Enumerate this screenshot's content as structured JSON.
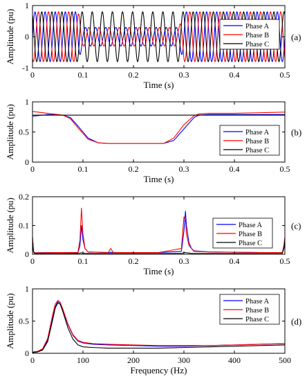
{
  "chart_data": [
    {
      "type": "line",
      "panel_label": "(a)",
      "xlabel": "Time (s)",
      "ylabel": "Amplitude (pu)",
      "xlim": [
        0,
        0.5
      ],
      "ylim": [
        -1,
        1
      ],
      "xticks": [
        0,
        0.1,
        0.2,
        0.3,
        0.4,
        0.5
      ],
      "xtick_labels": [
        "0",
        "0.1",
        "0.2",
        "0.3",
        "0.4",
        "0.5"
      ],
      "yticks": [
        -1,
        0,
        1
      ],
      "ytick_labels": [
        "-1",
        "0",
        "1"
      ],
      "grid": false,
      "legend": "top-right",
      "x": [
        0,
        0.09,
        0.1,
        0.29,
        0.3,
        0.5
      ],
      "series": [
        {
          "name": "Phase A",
          "color": "#0000ff",
          "frequency_hz": 50,
          "amplitude": [
            0.8,
            0.8,
            0.3,
            0.3,
            0.8,
            0.8
          ]
        },
        {
          "name": "Phase B",
          "color": "#ff0000",
          "frequency_hz": 50,
          "amplitude": [
            0.8,
            0.8,
            0.3,
            0.3,
            0.8,
            0.8
          ]
        },
        {
          "name": "Phase C",
          "color": "#000000",
          "frequency_hz": 50,
          "amplitude": [
            0.8,
            0.8,
            0.8,
            0.8,
            0.8,
            0.8
          ]
        }
      ]
    },
    {
      "type": "line",
      "panel_label": "(b)",
      "xlabel": "Time (s)",
      "ylabel": "Amplitude (pu)",
      "xlim": [
        0,
        0.5
      ],
      "ylim": [
        0,
        1
      ],
      "xticks": [
        0,
        0.1,
        0.2,
        0.3,
        0.4,
        0.5
      ],
      "xtick_labels": [
        "0",
        "0.1",
        "0.2",
        "0.3",
        "0.4",
        "0.5"
      ],
      "yticks": [
        0,
        0.5,
        1
      ],
      "ytick_labels": [
        "0",
        "0.5",
        "1"
      ],
      "grid": false,
      "legend": "bottom-right",
      "x": [
        0,
        0.03,
        0.06,
        0.075,
        0.09,
        0.11,
        0.13,
        0.15,
        0.26,
        0.28,
        0.3,
        0.32,
        0.33,
        0.35,
        0.4,
        0.5
      ],
      "series": [
        {
          "name": "Phase A",
          "color": "#0000ff",
          "values": [
            0.76,
            0.79,
            0.78,
            0.74,
            0.6,
            0.4,
            0.32,
            0.31,
            0.31,
            0.36,
            0.55,
            0.74,
            0.78,
            0.79,
            0.79,
            0.79
          ]
        },
        {
          "name": "Phase B",
          "color": "#ff0000",
          "values": [
            0.84,
            0.81,
            0.78,
            0.72,
            0.57,
            0.38,
            0.32,
            0.31,
            0.31,
            0.4,
            0.62,
            0.77,
            0.8,
            0.81,
            0.81,
            0.83
          ]
        },
        {
          "name": "Phase C",
          "color": "#000000",
          "values": [
            0.78,
            0.78,
            0.78,
            0.78,
            0.78,
            0.78,
            0.78,
            0.78,
            0.78,
            0.78,
            0.78,
            0.78,
            0.78,
            0.78,
            0.78,
            0.78
          ]
        }
      ]
    },
    {
      "type": "line",
      "panel_label": "(c)",
      "xlabel": "Time (s)",
      "ylabel": "Amplitude (pu)",
      "xlim": [
        0,
        0.5
      ],
      "ylim": [
        0,
        0.2
      ],
      "xticks": [
        0,
        0.1,
        0.2,
        0.3,
        0.4,
        0.5
      ],
      "xtick_labels": [
        "0",
        "0.1",
        "0.2",
        "0.3",
        "0.4",
        "0.5"
      ],
      "yticks": [
        0,
        0.1,
        0.2
      ],
      "ytick_labels": [
        "0",
        "0.1",
        "0.2"
      ],
      "grid": false,
      "legend": "top-right",
      "x": [
        0,
        0.002,
        0.004,
        0.05,
        0.09,
        0.094,
        0.097,
        0.1,
        0.104,
        0.11,
        0.15,
        0.155,
        0.16,
        0.2,
        0.25,
        0.295,
        0.3,
        0.303,
        0.305,
        0.31,
        0.315,
        0.32,
        0.35,
        0.45,
        0.495,
        0.498,
        0.5
      ],
      "series": [
        {
          "name": "Phase A",
          "color": "#0000ff",
          "values": [
            0.06,
            0.01,
            0.005,
            0.006,
            0.005,
            0.03,
            0.1,
            0.05,
            0.02,
            0.008,
            0.006,
            0.007,
            0.006,
            0.006,
            0.006,
            0.01,
            0.08,
            0.15,
            0.1,
            0.04,
            0.02,
            0.012,
            0.008,
            0.006,
            0.006,
            0.02,
            0.05
          ]
        },
        {
          "name": "Phase B",
          "color": "#ff0000",
          "values": [
            0.06,
            0.01,
            0.005,
            0.006,
            0.006,
            0.05,
            0.16,
            0.07,
            0.02,
            0.008,
            0.006,
            0.02,
            0.006,
            0.006,
            0.006,
            0.02,
            0.13,
            0.12,
            0.07,
            0.03,
            0.02,
            0.01,
            0.008,
            0.006,
            0.006,
            0.03,
            0.06
          ]
        },
        {
          "name": "Phase C",
          "color": "#000000",
          "values": [
            0.05,
            0.008,
            0.003,
            0.003,
            0.003,
            0.004,
            0.005,
            0.004,
            0.003,
            0.003,
            0.003,
            0.003,
            0.003,
            0.003,
            0.003,
            0.003,
            0.005,
            0.006,
            0.005,
            0.004,
            0.003,
            0.003,
            0.003,
            0.003,
            0.003,
            0.02,
            0.05
          ]
        }
      ]
    },
    {
      "type": "line",
      "panel_label": "(d)",
      "xlabel": "Frequency (Hz)",
      "ylabel": "Amplitude (pu)",
      "xlim": [
        0,
        500
      ],
      "ylim": [
        0,
        1
      ],
      "xticks": [
        0,
        100,
        200,
        300,
        400,
        500
      ],
      "xtick_labels": [
        "0",
        "100",
        "200",
        "300",
        "400",
        "500"
      ],
      "yticks": [
        0,
        0.5,
        1
      ],
      "ytick_labels": [
        "0",
        "0.5",
        "1"
      ],
      "grid": false,
      "legend": "top-right",
      "x": [
        0,
        10,
        20,
        30,
        40,
        45,
        50,
        55,
        60,
        70,
        80,
        90,
        100,
        120,
        150,
        200,
        250,
        300,
        350,
        400,
        450,
        500
      ],
      "series": [
        {
          "name": "Phase A",
          "color": "#0000ff",
          "values": [
            0.02,
            0.03,
            0.06,
            0.2,
            0.55,
            0.72,
            0.8,
            0.78,
            0.68,
            0.45,
            0.28,
            0.19,
            0.16,
            0.14,
            0.13,
            0.12,
            0.11,
            0.11,
            0.12,
            0.13,
            0.14,
            0.15
          ]
        },
        {
          "name": "Phase B",
          "color": "#ff0000",
          "values": [
            0.02,
            0.03,
            0.07,
            0.23,
            0.6,
            0.76,
            0.82,
            0.79,
            0.69,
            0.46,
            0.29,
            0.2,
            0.17,
            0.15,
            0.14,
            0.13,
            0.12,
            0.12,
            0.12,
            0.13,
            0.14,
            0.15
          ]
        },
        {
          "name": "Phase C",
          "color": "#000000",
          "values": [
            0.01,
            0.02,
            0.05,
            0.18,
            0.52,
            0.7,
            0.78,
            0.76,
            0.65,
            0.4,
            0.22,
            0.13,
            0.1,
            0.09,
            0.08,
            0.08,
            0.08,
            0.09,
            0.1,
            0.11,
            0.12,
            0.13
          ]
        }
      ]
    }
  ]
}
